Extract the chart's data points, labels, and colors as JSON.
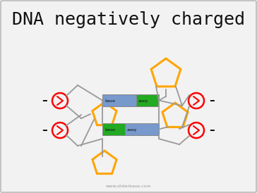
{
  "title": "DNA negatively charged",
  "title_fontsize": 18,
  "bg_color": "#f2f2f2",
  "orange_color": "#FFA500",
  "red_color": "#FF0000",
  "blue_color": "#7799CC",
  "green_color": "#22AA22",
  "gray_color": "#999999",
  "black_color": "#111111",
  "watermark": "www.sliderbase.com",
  "figsize": [
    3.64,
    2.74
  ],
  "dpi": 100
}
